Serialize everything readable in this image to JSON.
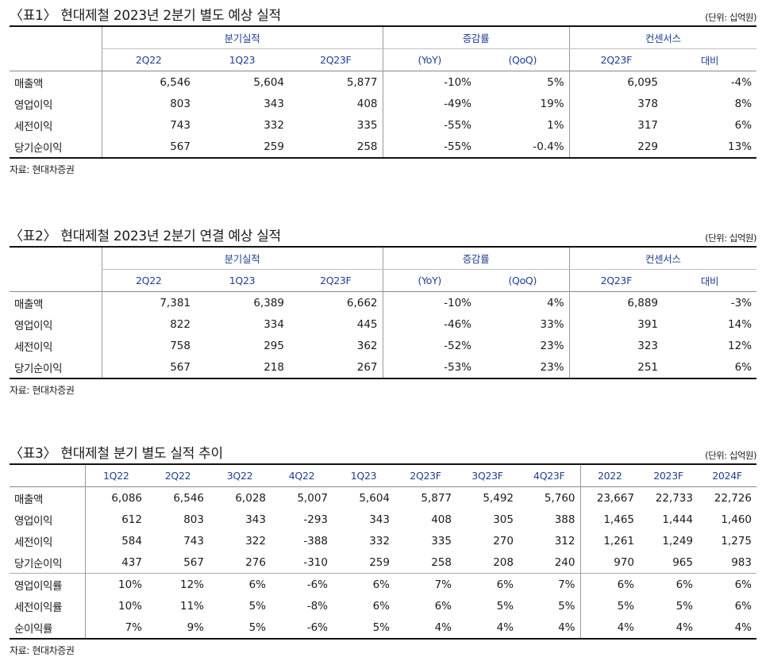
{
  "table1": {
    "title": "〈표1〉 현대제철 2023년 2분기 별도 예상 실적",
    "unit": "(단위: 십억원)",
    "groups": [
      "분기실적",
      "증감률",
      "컨센서스"
    ],
    "columns": [
      "2Q22",
      "1Q23",
      "2Q23F",
      "(YoY)",
      "(QoQ)",
      "2Q23F",
      "대비"
    ],
    "rows": [
      {
        "label": "매출액",
        "values": [
          "6,546",
          "5,604",
          "5,877",
          "-10%",
          "5%",
          "6,095",
          "-4%"
        ]
      },
      {
        "label": "영업이익",
        "values": [
          "803",
          "343",
          "408",
          "-49%",
          "19%",
          "378",
          "8%"
        ]
      },
      {
        "label": "세전이익",
        "values": [
          "743",
          "332",
          "335",
          "-55%",
          "1%",
          "317",
          "6%"
        ]
      },
      {
        "label": "당기순이익",
        "values": [
          "567",
          "259",
          "258",
          "-55%",
          "-0.4%",
          "229",
          "13%"
        ]
      }
    ],
    "source": "자료: 현대차증권"
  },
  "table2": {
    "title": "〈표2〉 현대제철 2023년 2분기 연결 예상 실적",
    "unit": "(단위: 십억원)",
    "groups": [
      "분기실적",
      "증감률",
      "컨센서스"
    ],
    "columns": [
      "2Q22",
      "1Q23",
      "2Q23F",
      "(YoY)",
      "(QoQ)",
      "2Q23F",
      "대비"
    ],
    "rows": [
      {
        "label": "매출액",
        "values": [
          "7,381",
          "6,389",
          "6,662",
          "-10%",
          "4%",
          "6,889",
          "-3%"
        ]
      },
      {
        "label": "영업이익",
        "values": [
          "822",
          "334",
          "445",
          "-46%",
          "33%",
          "391",
          "14%"
        ]
      },
      {
        "label": "세전이익",
        "values": [
          "758",
          "295",
          "362",
          "-52%",
          "23%",
          "323",
          "12%"
        ]
      },
      {
        "label": "당기순이익",
        "values": [
          "567",
          "218",
          "267",
          "-53%",
          "23%",
          "251",
          "6%"
        ]
      }
    ],
    "source": "자료: 현대차증권"
  },
  "table3": {
    "title": "〈표3〉 현대제철 분기 별도 실적 추이",
    "unit": "(단위: 십억원)",
    "columns": [
      "1Q22",
      "2Q22",
      "3Q22",
      "4Q22",
      "1Q23",
      "2Q23F",
      "3Q23F",
      "4Q23F",
      "2022",
      "2023F",
      "2024F"
    ],
    "rows": [
      {
        "label": "매출액",
        "values": [
          "6,086",
          "6,546",
          "6,028",
          "5,007",
          "5,604",
          "5,877",
          "5,492",
          "5,760",
          "23,667",
          "22,733",
          "22,726"
        ]
      },
      {
        "label": "영업이익",
        "values": [
          "612",
          "803",
          "343",
          "-293",
          "343",
          "408",
          "305",
          "388",
          "1,465",
          "1,444",
          "1,460"
        ]
      },
      {
        "label": "세전이익",
        "values": [
          "584",
          "743",
          "322",
          "-388",
          "332",
          "335",
          "270",
          "312",
          "1,261",
          "1,249",
          "1,275"
        ]
      },
      {
        "label": "당기순이익",
        "values": [
          "437",
          "567",
          "276",
          "-310",
          "259",
          "258",
          "208",
          "240",
          "970",
          "965",
          "983"
        ]
      }
    ],
    "ratio_rows": [
      {
        "label": "영업이익률",
        "values": [
          "10%",
          "12%",
          "6%",
          "-6%",
          "6%",
          "7%",
          "6%",
          "7%",
          "6%",
          "6%",
          "6%"
        ]
      },
      {
        "label": "세전이익률",
        "values": [
          "10%",
          "11%",
          "5%",
          "-8%",
          "6%",
          "6%",
          "5%",
          "5%",
          "5%",
          "5%",
          "6%"
        ]
      },
      {
        "label": "순이익률",
        "values": [
          "7%",
          "9%",
          "5%",
          "-6%",
          "5%",
          "4%",
          "4%",
          "4%",
          "4%",
          "4%",
          "4%"
        ]
      }
    ],
    "source": "자료: 현대차증권"
  }
}
